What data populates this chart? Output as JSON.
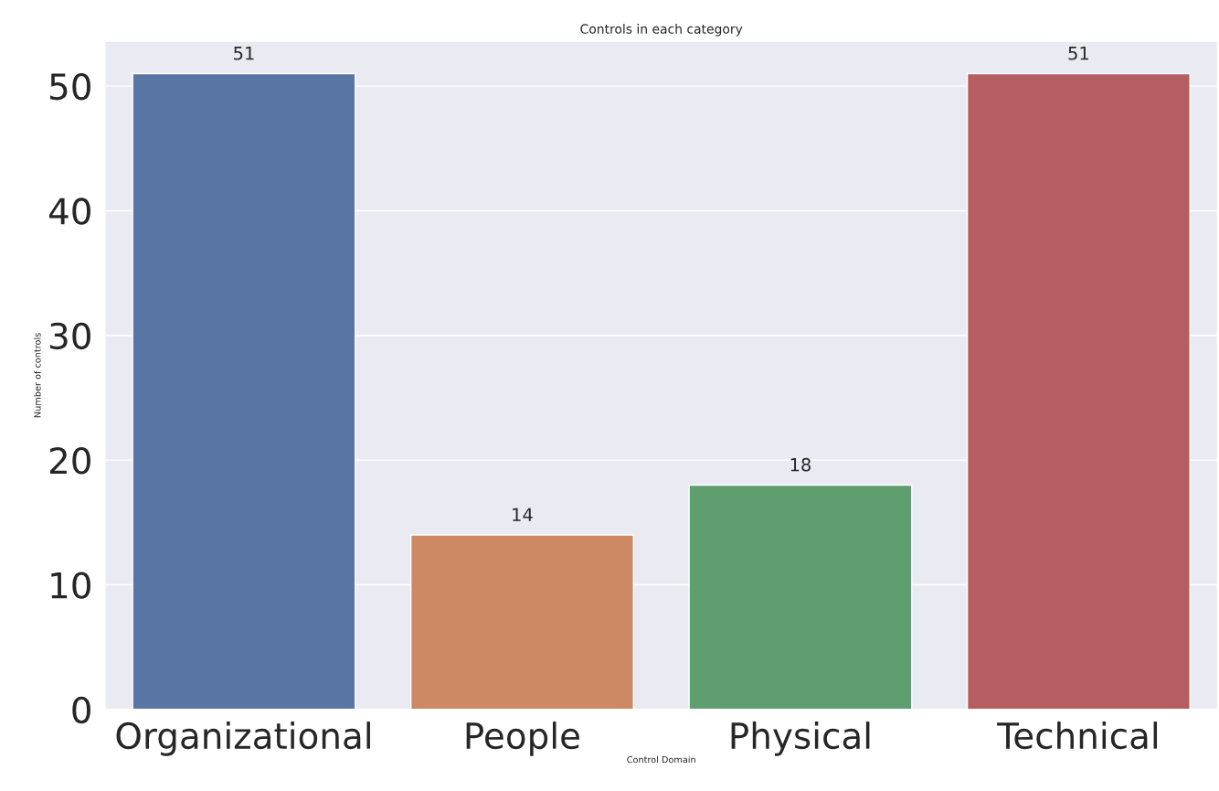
{
  "chart_data": {
    "type": "bar",
    "title": "Controls in each category",
    "xlabel": "Control Domain",
    "ylabel": "Number of controls",
    "categories": [
      "Organizational",
      "People",
      "Physical",
      "Technical"
    ],
    "values": [
      51,
      14,
      18,
      51
    ],
    "colors": [
      "#5875a4",
      "#cc8963",
      "#5f9e6e",
      "#b55d60"
    ],
    "ylim": [
      0,
      53.6
    ],
    "yticks": [
      0,
      10,
      20,
      30,
      40,
      50
    ],
    "grid": "y",
    "data_labels": true
  }
}
